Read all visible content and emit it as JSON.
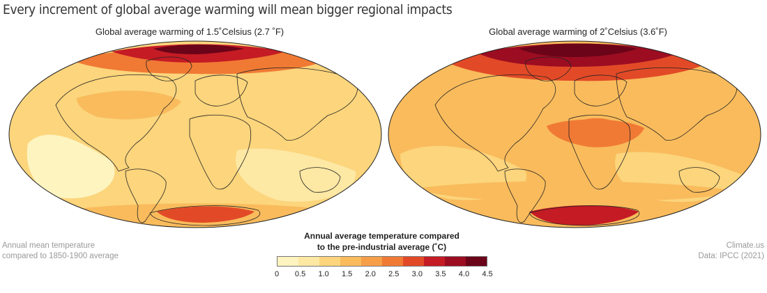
{
  "title": "Every increment of global average warming will mean bigger regional impacts",
  "maps": [
    {
      "title": "Global average warming of 1.5˚Celsius (2.7 ˚F)",
      "warming_c": 1.5
    },
    {
      "title": "Global average warming of 2˚Celsius (3.6˚F)",
      "warming_c": 2.0
    }
  ],
  "legend": {
    "title_line1": "Annual average temperature compared",
    "title_line2": "to the pre-industrial average (˚C)",
    "ticks": [
      "0",
      "0.5",
      "1.0",
      "1.5",
      "2.0",
      "2.5",
      "3.0",
      "3.5",
      "4.0",
      "4.5"
    ],
    "colors": [
      "#fdf4c0",
      "#fde8a4",
      "#fcd57c",
      "#f9bb5c",
      "#f69e48",
      "#f07a34",
      "#e24a27",
      "#c41b24",
      "#9c0d22",
      "#6b0419"
    ]
  },
  "notes": {
    "left_line1": "Annual mean temperature",
    "left_line2": "compared to 1850-1900 average",
    "right_line1": "Climate.us",
    "right_line2": "Data: IPCC (2021)"
  }
}
